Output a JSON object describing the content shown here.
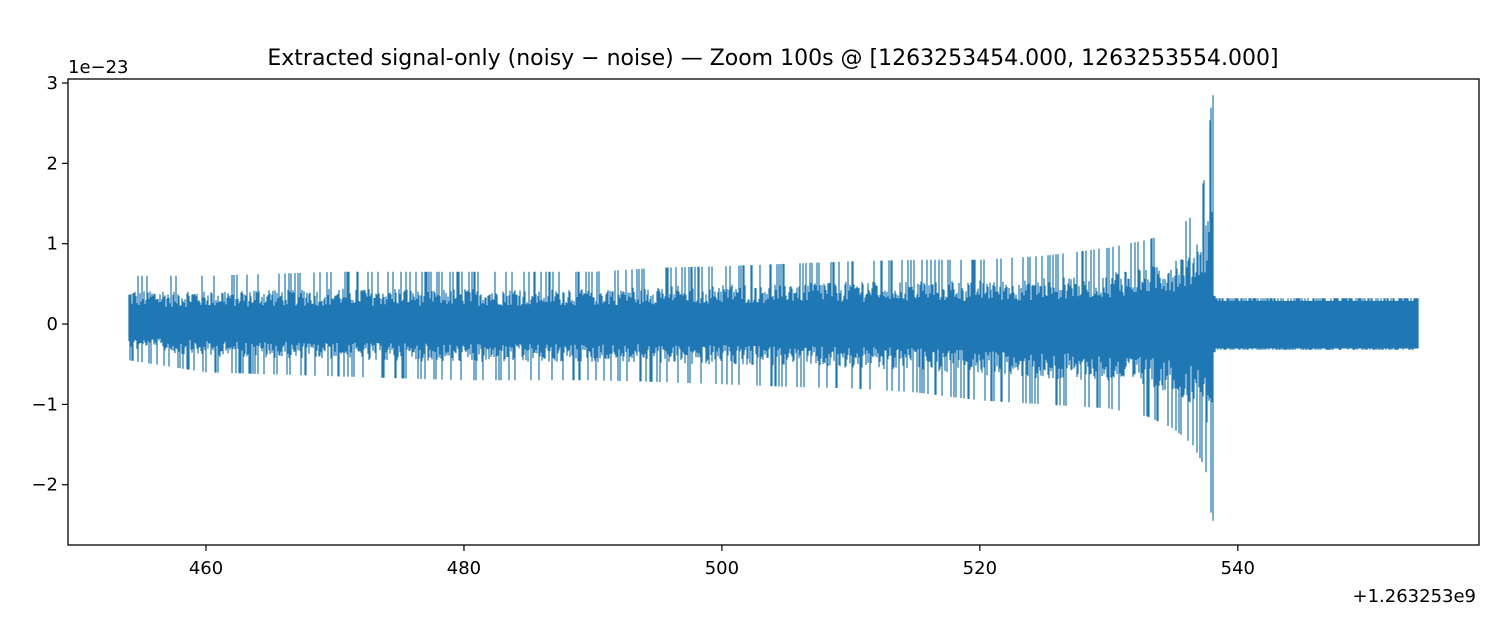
{
  "chart_data": {
    "type": "line",
    "title": "Extracted signal-only (noisy − noise) — Zoom 100s @ [1263253454.000, 1263253554.000]",
    "xlabel": "",
    "ylabel": "",
    "x_offset_label": "+1.263253e9",
    "y_scale_label": "1e−23",
    "x_offset": 1263253000,
    "y_scale": 1e-23,
    "xlim": [
      1263253449.3,
      1263253558.7
    ],
    "ylim": [
      -2.75e-23,
      3.05e-23
    ],
    "x_ticks": [
      {
        "value": 1263253460,
        "label": "460"
      },
      {
        "value": 1263253480,
        "label": "480"
      },
      {
        "value": 1263253500,
        "label": "500"
      },
      {
        "value": 1263253520,
        "label": "520"
      },
      {
        "value": 1263253540,
        "label": "540"
      }
    ],
    "y_ticks": [
      {
        "value": -2e-23,
        "label": "−2"
      },
      {
        "value": -1e-23,
        "label": "−1"
      },
      {
        "value": 0,
        "label": "0"
      },
      {
        "value": 1e-23,
        "label": "1"
      },
      {
        "value": 2e-23,
        "label": "2"
      },
      {
        "value": 3e-23,
        "label": "3"
      }
    ],
    "grid": false,
    "series": [
      {
        "color": "#1f77b4",
        "x_range": [
          1263253454.0,
          1263253554.0
        ],
        "peak_time": 1263253538.1,
        "peak_max": 2.85e-23,
        "peak_min": -2.45e-23,
        "envelope": {
          "t": [
            1263253454.0,
            1263253460.0,
            1263253470.0,
            1263253480.0,
            1263253490.0,
            1263253495.0,
            1263253500.0,
            1263253505.0,
            1263253510.0,
            1263253515.0,
            1263253520.0,
            1263253525.0,
            1263253530.0,
            1263253533.0,
            1263253535.0,
            1263253536.5,
            1263253537.5,
            1263253538.0
          ],
          "upper": [
            6e-24,
            6e-24,
            6.5e-24,
            6.5e-24,
            6.5e-24,
            7e-24,
            7.2e-24,
            7.5e-24,
            7.8e-24,
            8e-24,
            8e-24,
            8.5e-24,
            9.5e-24,
            1.05e-23,
            1.15e-23,
            1.35e-23,
            1.85e-23,
            2.85e-23
          ],
          "lower": [
            -4.5e-24,
            -6e-24,
            -6.5e-24,
            -7e-24,
            -7e-24,
            -7.2e-24,
            -7.5e-24,
            -7.8e-24,
            -8e-24,
            -8.5e-24,
            -9.5e-24,
            -1e-23,
            -1.05e-23,
            -1.15e-23,
            -1.3e-23,
            -1.5e-23,
            -1.8e-23,
            -2.45e-23
          ]
        },
        "post_merger_amplitude": 3.2e-24
      }
    ]
  }
}
